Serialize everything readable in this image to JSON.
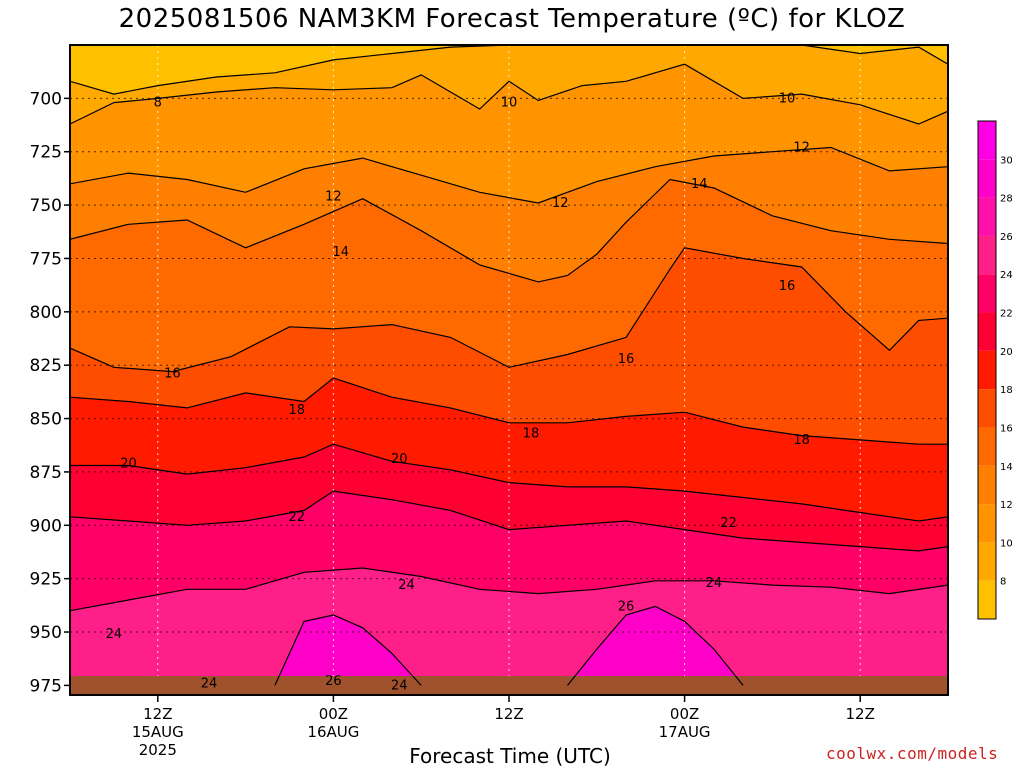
{
  "chart_data": {
    "type": "heatmap",
    "title": "2025081506 NAM3KM Forecast Temperature (ºC) for KLOZ",
    "xlabel": "Forecast Time (UTC)",
    "ylabel": "",
    "y_axis": {
      "scale": "pressure (inverted)",
      "ylim": [
        975,
        675
      ],
      "ticks": [
        "700",
        "725",
        "750",
        "775",
        "800",
        "825",
        "850",
        "875",
        "900",
        "925",
        "950",
        "975"
      ]
    },
    "x_axis": {
      "xlim_hours": [
        6,
        66
      ],
      "grid": "dotted",
      "ticks": [
        {
          "hour": 12,
          "line1": "12Z",
          "line2": "15AUG",
          "line3": "2025"
        },
        {
          "hour": 24,
          "line1": "00Z",
          "line2": "16AUG",
          "line3": ""
        },
        {
          "hour": 36,
          "line1": "12Z",
          "line2": "",
          "line3": ""
        },
        {
          "hour": 48,
          "line1": "00Z",
          "line2": "17AUG",
          "line3": ""
        },
        {
          "hour": 60,
          "line1": "12Z",
          "line2": "",
          "line3": ""
        }
      ]
    },
    "colorbar": {
      "levels": [
        "8",
        "10",
        "12",
        "14",
        "16",
        "18",
        "20",
        "22",
        "24",
        "26",
        "28",
        "30"
      ],
      "colors": [
        "#ffc000",
        "#ffa800",
        "#ff9400",
        "#ff8000",
        "#ff6a00",
        "#ff4d00",
        "#ff1a00",
        "#ff0033",
        "#ff0066",
        "#ff1f88",
        "#ff10a8",
        "#ff00c8",
        "#ff00e6"
      ]
    },
    "contours": [
      {
        "level": 8,
        "y": [
          [
            6,
            692
          ],
          [
            9,
            698
          ],
          [
            12,
            694
          ],
          [
            16,
            690
          ],
          [
            20,
            688
          ],
          [
            24,
            682
          ],
          [
            28,
            679
          ],
          [
            32,
            676
          ],
          [
            36,
            675
          ],
          [
            40,
            675
          ],
          [
            44,
            675
          ],
          [
            48,
            675
          ],
          [
            52,
            675
          ],
          [
            56,
            675
          ],
          [
            60,
            679
          ],
          [
            64,
            676
          ],
          [
            66,
            684
          ]
        ]
      },
      {
        "level": 10,
        "y": [
          [
            6,
            712
          ],
          [
            9,
            702
          ],
          [
            12,
            700
          ],
          [
            16,
            697
          ],
          [
            20,
            695
          ],
          [
            24,
            696
          ],
          [
            28,
            695
          ],
          [
            30,
            689
          ],
          [
            34,
            705
          ],
          [
            36,
            692
          ],
          [
            38,
            701
          ],
          [
            41,
            694
          ],
          [
            44,
            692
          ],
          [
            48,
            684
          ],
          [
            52,
            700
          ],
          [
            56,
            698
          ],
          [
            60,
            703
          ],
          [
            64,
            712
          ],
          [
            66,
            706
          ]
        ]
      },
      {
        "level": 12,
        "y": [
          [
            6,
            740
          ],
          [
            10,
            735
          ],
          [
            14,
            738
          ],
          [
            18,
            744
          ],
          [
            22,
            733
          ],
          [
            26,
            728
          ],
          [
            30,
            736
          ],
          [
            34,
            744
          ],
          [
            38,
            749
          ],
          [
            42,
            739
          ],
          [
            46,
            732
          ],
          [
            50,
            727
          ],
          [
            54,
            725
          ],
          [
            58,
            723
          ],
          [
            62,
            734
          ],
          [
            66,
            732
          ]
        ]
      },
      {
        "level": 14,
        "y": [
          [
            6,
            766
          ],
          [
            10,
            759
          ],
          [
            14,
            757
          ],
          [
            18,
            770
          ],
          [
            22,
            759
          ],
          [
            26,
            747
          ],
          [
            30,
            762
          ],
          [
            34,
            778
          ],
          [
            38,
            786
          ],
          [
            40,
            783
          ],
          [
            42,
            773
          ],
          [
            44,
            758
          ],
          [
            47,
            738
          ],
          [
            50,
            742
          ],
          [
            54,
            755
          ],
          [
            58,
            762
          ],
          [
            62,
            766
          ],
          [
            66,
            768
          ]
        ]
      },
      {
        "level": 16,
        "y": [
          [
            6,
            817
          ],
          [
            9,
            826
          ],
          [
            13,
            828
          ],
          [
            17,
            821
          ],
          [
            21,
            807
          ],
          [
            24,
            808
          ],
          [
            28,
            806
          ],
          [
            32,
            812
          ],
          [
            36,
            826
          ],
          [
            40,
            820
          ],
          [
            44,
            812
          ],
          [
            47,
            780
          ],
          [
            48,
            770
          ],
          [
            52,
            775
          ],
          [
            56,
            779
          ],
          [
            59,
            800
          ],
          [
            62,
            818
          ],
          [
            64,
            804
          ],
          [
            66,
            803
          ]
        ]
      },
      {
        "level": 18,
        "y": [
          [
            6,
            840
          ],
          [
            10,
            842
          ],
          [
            14,
            845
          ],
          [
            18,
            838
          ],
          [
            22,
            842
          ],
          [
            24,
            831
          ],
          [
            28,
            840
          ],
          [
            32,
            845
          ],
          [
            36,
            852
          ],
          [
            40,
            852
          ],
          [
            44,
            849
          ],
          [
            48,
            847
          ],
          [
            52,
            854
          ],
          [
            56,
            858
          ],
          [
            60,
            860
          ],
          [
            64,
            862
          ],
          [
            66,
            862
          ]
        ]
      },
      {
        "level": 20,
        "y": [
          [
            6,
            872
          ],
          [
            10,
            872
          ],
          [
            14,
            876
          ],
          [
            18,
            873
          ],
          [
            22,
            868
          ],
          [
            24,
            862
          ],
          [
            28,
            870
          ],
          [
            32,
            874
          ],
          [
            36,
            880
          ],
          [
            40,
            882
          ],
          [
            44,
            882
          ],
          [
            48,
            884
          ],
          [
            52,
            887
          ],
          [
            56,
            890
          ],
          [
            60,
            894
          ],
          [
            64,
            898
          ],
          [
            66,
            896
          ]
        ]
      },
      {
        "level": 22,
        "y": [
          [
            6,
            896
          ],
          [
            10,
            898
          ],
          [
            14,
            900
          ],
          [
            18,
            898
          ],
          [
            22,
            893
          ],
          [
            24,
            884
          ],
          [
            28,
            888
          ],
          [
            32,
            893
          ],
          [
            36,
            902
          ],
          [
            40,
            900
          ],
          [
            44,
            898
          ],
          [
            48,
            902
          ],
          [
            52,
            906
          ],
          [
            56,
            908
          ],
          [
            60,
            910
          ],
          [
            64,
            912
          ],
          [
            66,
            910
          ]
        ]
      },
      {
        "level": 24,
        "y": [
          [
            6,
            940
          ],
          [
            10,
            935
          ],
          [
            14,
            930
          ],
          [
            18,
            930
          ],
          [
            22,
            922
          ],
          [
            26,
            920
          ],
          [
            30,
            924
          ],
          [
            34,
            930
          ],
          [
            38,
            932
          ],
          [
            42,
            930
          ],
          [
            46,
            926
          ],
          [
            50,
            926
          ],
          [
            54,
            928
          ],
          [
            58,
            929
          ],
          [
            62,
            932
          ],
          [
            66,
            928
          ]
        ]
      },
      {
        "level": 26,
        "y": [
          [
            20,
            975
          ],
          [
            22,
            945
          ],
          [
            24,
            942
          ],
          [
            26,
            948
          ],
          [
            28,
            960
          ],
          [
            30,
            975
          ]
        ]
      },
      {
        "level": 26,
        "y": [
          [
            40,
            975
          ],
          [
            42,
            958
          ],
          [
            44,
            942
          ],
          [
            46,
            938
          ],
          [
            48,
            945
          ],
          [
            50,
            958
          ],
          [
            52,
            975
          ]
        ]
      }
    ],
    "contour_labels": [
      {
        "text": "8",
        "x": 12.0,
        "p": 702
      },
      {
        "text": "10",
        "x": 36.0,
        "p": 702
      },
      {
        "text": "10",
        "x": 55.0,
        "p": 700
      },
      {
        "text": "12",
        "x": 24.0,
        "p": 746
      },
      {
        "text": "12",
        "x": 39.5,
        "p": 749
      },
      {
        "text": "12",
        "x": 56.0,
        "p": 723
      },
      {
        "text": "14",
        "x": 24.5,
        "p": 772
      },
      {
        "text": "14",
        "x": 49.0,
        "p": 740
      },
      {
        "text": "16",
        "x": 13.0,
        "p": 829
      },
      {
        "text": "16",
        "x": 44.0,
        "p": 822
      },
      {
        "text": "16",
        "x": 55.0,
        "p": 788
      },
      {
        "text": "18",
        "x": 21.5,
        "p": 846
      },
      {
        "text": "18",
        "x": 37.5,
        "p": 857
      },
      {
        "text": "18",
        "x": 56.0,
        "p": 860
      },
      {
        "text": "20",
        "x": 10.0,
        "p": 871
      },
      {
        "text": "20",
        "x": 28.5,
        "p": 869
      },
      {
        "text": "22",
        "x": 21.5,
        "p": 896
      },
      {
        "text": "22",
        "x": 51.0,
        "p": 899
      },
      {
        "text": "24",
        "x": 9.0,
        "p": 951
      },
      {
        "text": "24",
        "x": 29.0,
        "p": 928
      },
      {
        "text": "24",
        "x": 50.0,
        "p": 927
      },
      {
        "text": "24",
        "x": 15.5,
        "p": 974
      },
      {
        "text": "24",
        "x": 28.5,
        "p": 975
      },
      {
        "text": "26",
        "x": 24.0,
        "p": 973
      },
      {
        "text": "26",
        "x": 44.0,
        "p": 938
      }
    ]
  },
  "footer": {
    "credit": "coolwx.com/models"
  }
}
